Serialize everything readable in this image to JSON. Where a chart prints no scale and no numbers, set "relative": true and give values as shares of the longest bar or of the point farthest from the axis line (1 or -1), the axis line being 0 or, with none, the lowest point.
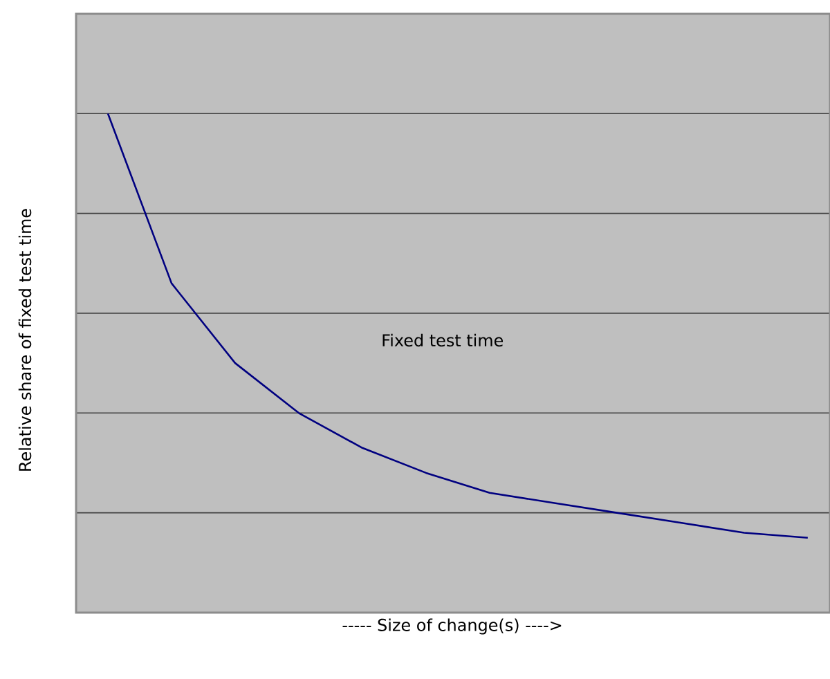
{
  "chart_data": {
    "type": "line",
    "relative": true,
    "xlabel": "----- Size of change(s) ---->",
    "ylabel": "Relative share of fixed test time",
    "annotations": [
      "Fixed test time"
    ],
    "categories": [
      null,
      null,
      null,
      null,
      null,
      null,
      null,
      null,
      null,
      null,
      null,
      null
    ],
    "series": [
      {
        "color": "#000080",
        "values": [
          1,
          0.66,
          0.5,
          0.4,
          0.33,
          0.28,
          0.24,
          0.22,
          0.2,
          0.18,
          0.16,
          0.15
        ]
      }
    ],
    "grid": "y",
    "marker": "none",
    "line_style": "solid"
  }
}
